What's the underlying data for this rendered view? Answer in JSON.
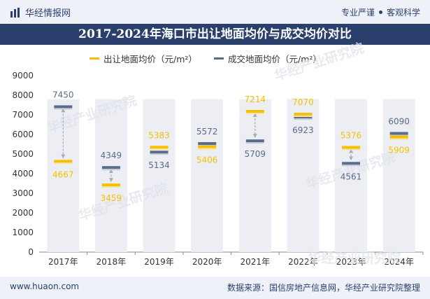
{
  "header": {
    "brand": "华经情报网",
    "tagline_left": "专业严谨",
    "tagline_right": "客观科学",
    "title": "2017-2024年海口市出让地面均价与成交均价对比"
  },
  "legend": {
    "series_a": "出让地面均价（元/m²）",
    "series_b": "成交地面均价（元/m²）"
  },
  "colors": {
    "series_a": "#f5c000",
    "series_b": "#5a6b8c",
    "column": "#eceef3",
    "brand": "#2b3f6c"
  },
  "watermark": "华经产业研究院",
  "chart_data": {
    "type": "bar",
    "title": "2017-2024年海口市出让地面均价与成交均价对比",
    "xlabel": "",
    "ylabel": "",
    "ylim": [
      0,
      9000
    ],
    "yticks": [
      0,
      1000,
      2000,
      3000,
      4000,
      5000,
      6000,
      7000,
      8000,
      9000
    ],
    "categories": [
      "2017年",
      "2018年",
      "2019年",
      "2020年",
      "2021年",
      "2022年",
      "2023年",
      "2024年"
    ],
    "series": [
      {
        "name": "出让地面均价（元/m²）",
        "values": [
          4667,
          3459,
          5383,
          5406,
          7214,
          7070,
          5376,
          5909
        ]
      },
      {
        "name": "成交地面均价（元/m²）",
        "values": [
          7450,
          4349,
          5134,
          5572,
          5709,
          6923,
          4561,
          6090
        ]
      }
    ],
    "background_column_value": 7800
  },
  "footer": {
    "url": "www.huaon.com",
    "source": "数据来源：国信房地产信息网，华经产业研究院整理"
  }
}
